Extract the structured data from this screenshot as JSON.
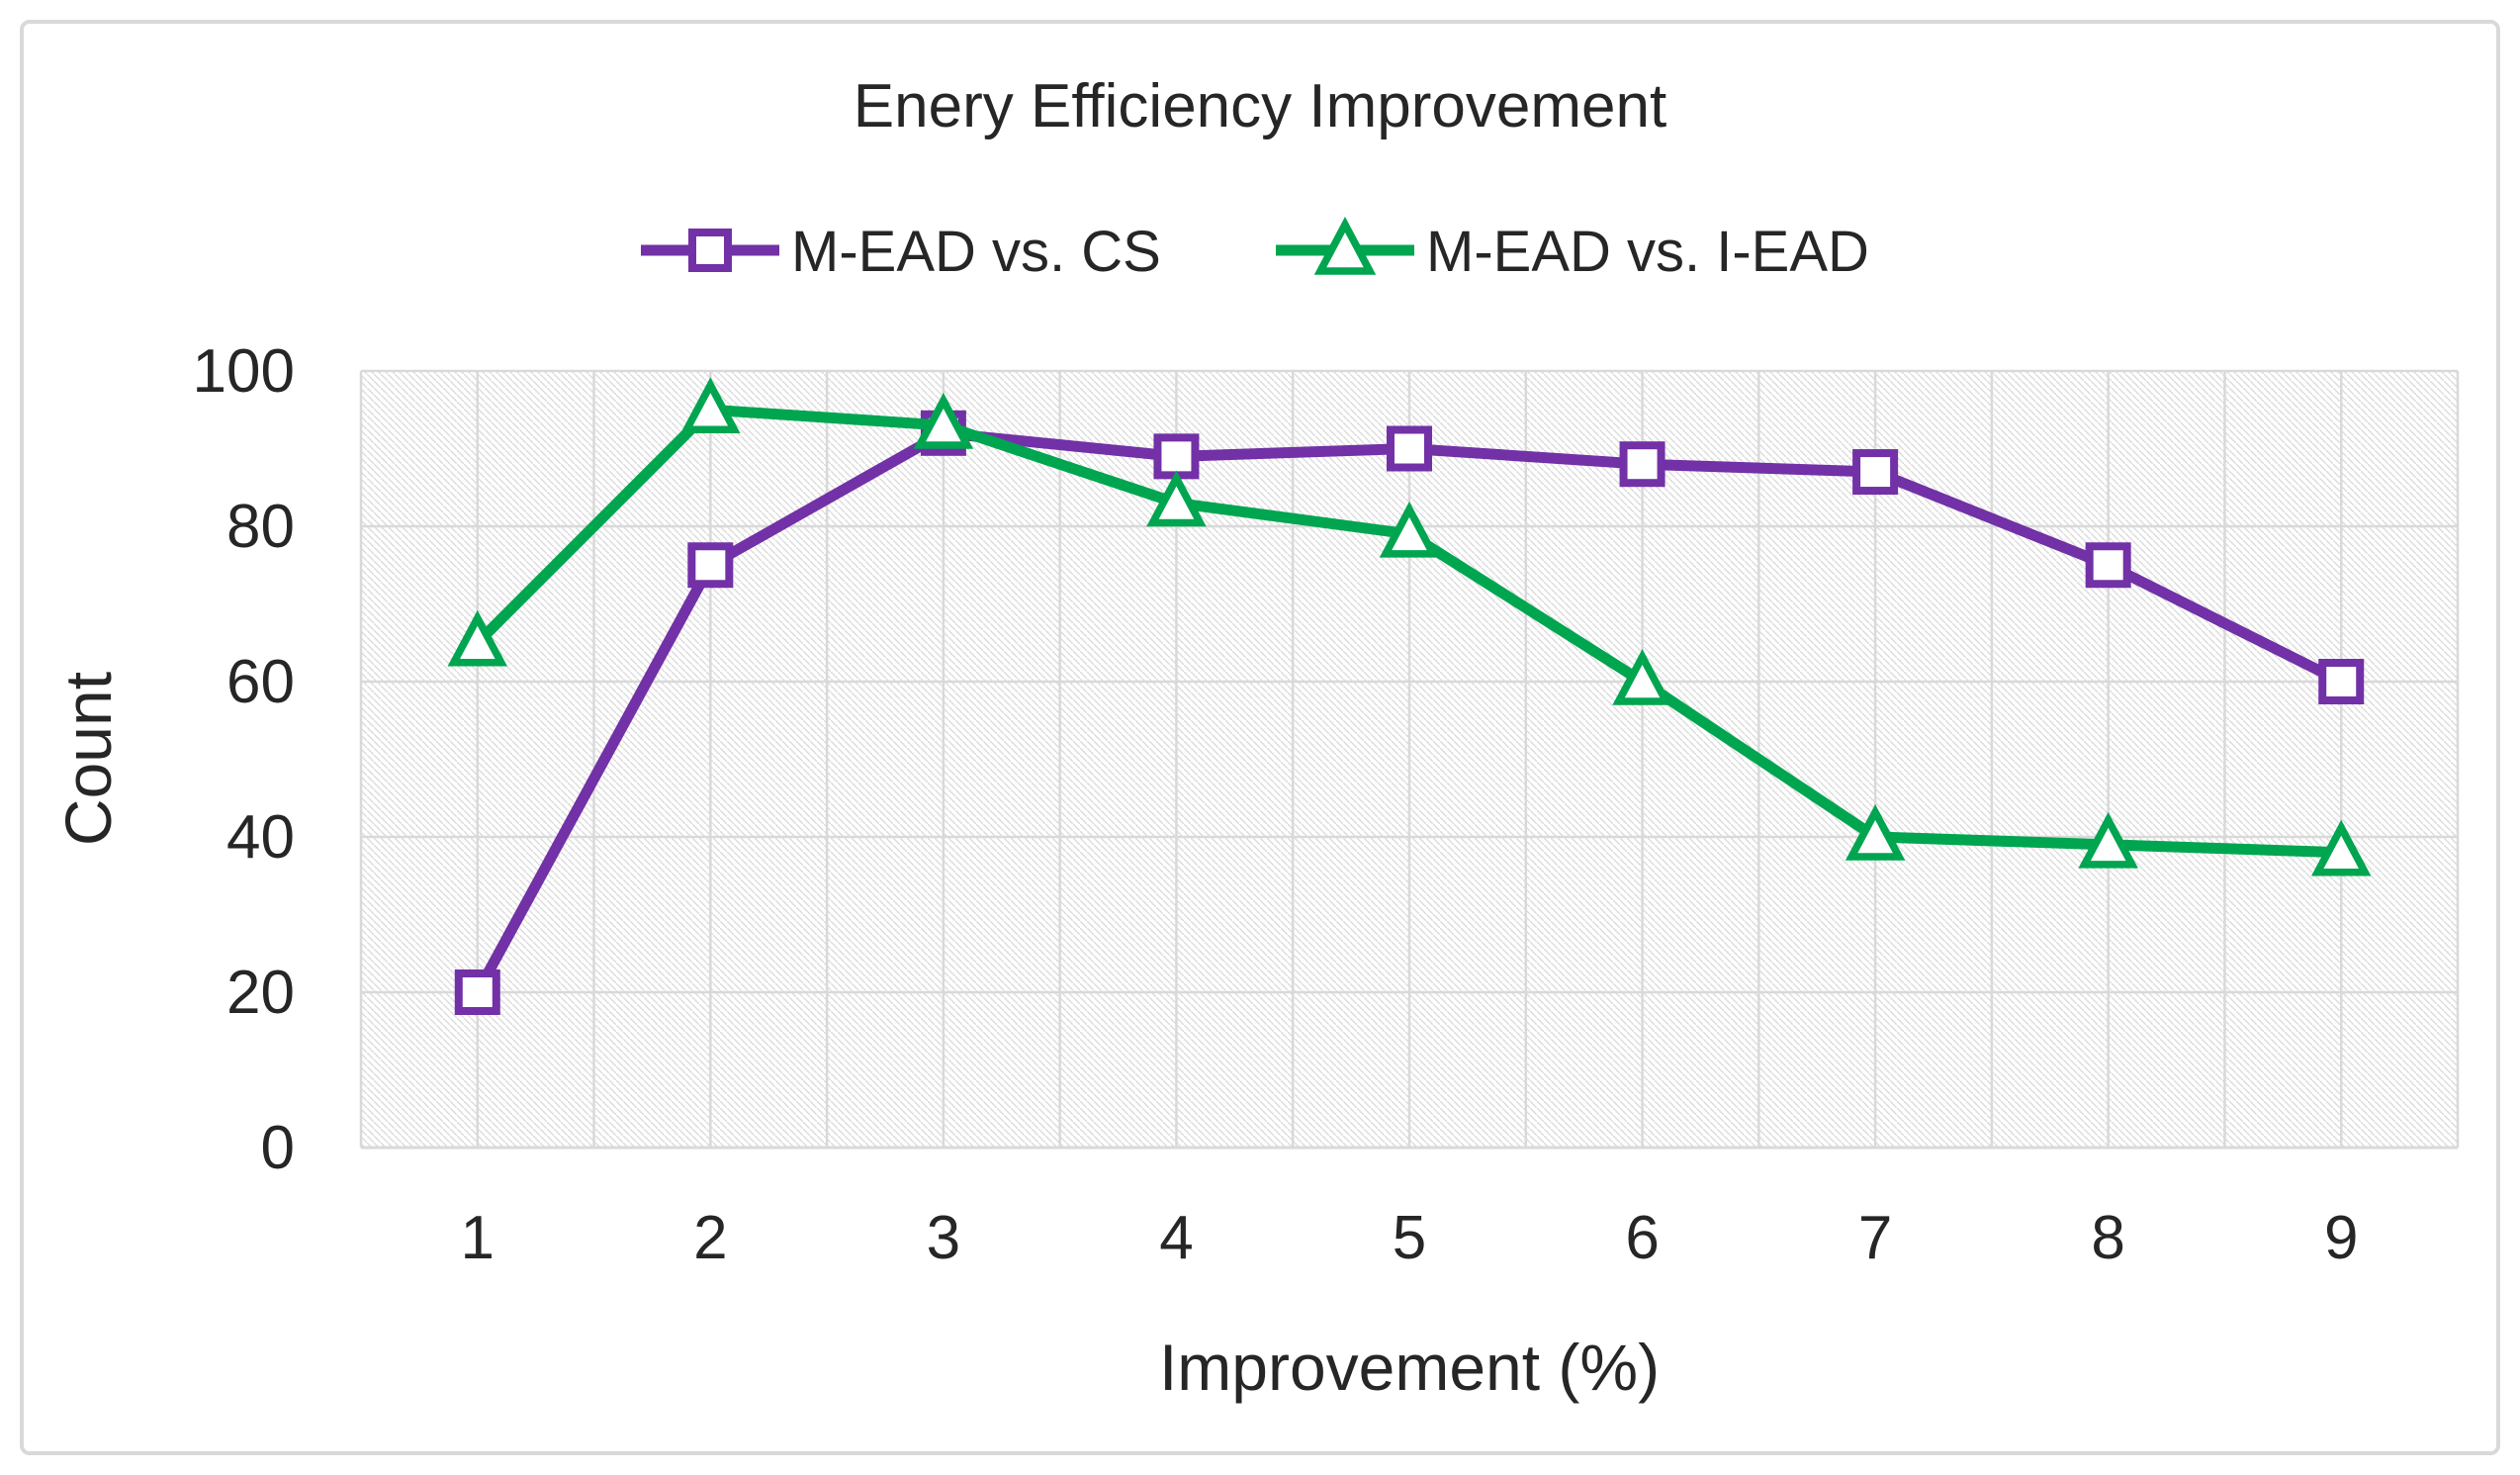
{
  "chart": {
    "title": "Enery Efficiency Improvement",
    "x_axis_title": "Improvement (%)",
    "y_axis_title": "Count",
    "legend_position": "top",
    "background": "#ffffff",
    "frame_color": "#d9d9d9",
    "gridline_color": "#d9d9d9",
    "plot_pattern": "light-diagonal-hatch",
    "text_color": "#262626"
  },
  "chart_data": {
    "type": "line",
    "title": "Enery Efficiency Improvement",
    "xlabel": "Improvement (%)",
    "ylabel": "Count",
    "categories": [
      1,
      2,
      3,
      4,
      5,
      6,
      7,
      8,
      9
    ],
    "series": [
      {
        "name": "M-EAD vs. CS",
        "color": "#7231a6",
        "marker": "square",
        "values": [
          20,
          75,
          92,
          89,
          90,
          88,
          87,
          75,
          60
        ]
      },
      {
        "name": "M-EAD vs. I-EAD",
        "color": "#00a550",
        "marker": "triangle",
        "values": [
          65,
          95,
          93,
          83,
          79,
          60,
          40,
          39,
          38
        ]
      }
    ],
    "ylim": [
      0,
      100
    ],
    "y_ticks": [
      0,
      20,
      40,
      60,
      80,
      100
    ],
    "grid": "horizontal-major + vertical-half-category",
    "legend_position": "top"
  }
}
